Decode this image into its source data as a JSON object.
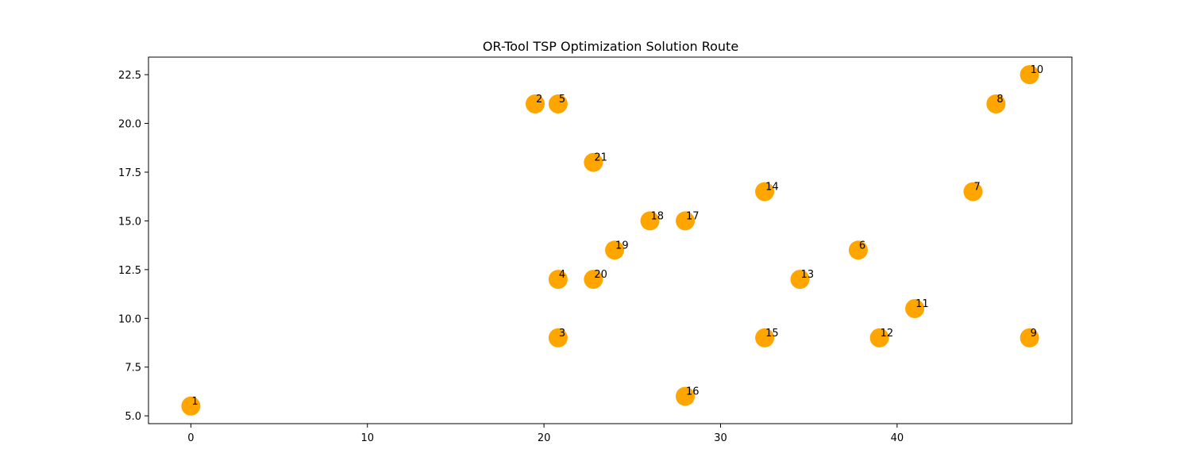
{
  "chart_data": {
    "type": "scatter",
    "title": "OR-Tool TSP Optimization Solution Route",
    "xlabel": "",
    "ylabel": "",
    "xlim": [
      -2.4,
      49.9
    ],
    "ylim": [
      4.6,
      23.4
    ],
    "xticks": [
      0,
      10,
      20,
      30,
      40
    ],
    "yticks": [
      5.0,
      7.5,
      10.0,
      12.5,
      15.0,
      17.5,
      20.0,
      22.5
    ],
    "xtick_labels": [
      "0",
      "10",
      "20",
      "30",
      "40"
    ],
    "ytick_labels": [
      "5.0",
      "7.5",
      "10.0",
      "12.5",
      "15.0",
      "17.5",
      "20.0",
      "22.5"
    ],
    "grid": false,
    "marker_color": "#FFA500",
    "points": [
      {
        "label": "1",
        "x": 0.0,
        "y": 5.5
      },
      {
        "label": "2",
        "x": 19.5,
        "y": 21.0
      },
      {
        "label": "3",
        "x": 20.8,
        "y": 9.0
      },
      {
        "label": "4",
        "x": 20.8,
        "y": 12.0
      },
      {
        "label": "5",
        "x": 20.8,
        "y": 21.0
      },
      {
        "label": "6",
        "x": 37.8,
        "y": 13.5
      },
      {
        "label": "7",
        "x": 44.3,
        "y": 16.5
      },
      {
        "label": "8",
        "x": 45.6,
        "y": 21.0
      },
      {
        "label": "9",
        "x": 47.5,
        "y": 9.0
      },
      {
        "label": "10",
        "x": 47.5,
        "y": 22.5
      },
      {
        "label": "11",
        "x": 41.0,
        "y": 10.5
      },
      {
        "label": "12",
        "x": 39.0,
        "y": 9.0
      },
      {
        "label": "13",
        "x": 34.5,
        "y": 12.0
      },
      {
        "label": "14",
        "x": 32.5,
        "y": 16.5
      },
      {
        "label": "15",
        "x": 32.5,
        "y": 9.0
      },
      {
        "label": "16",
        "x": 28.0,
        "y": 6.0
      },
      {
        "label": "17",
        "x": 28.0,
        "y": 15.0
      },
      {
        "label": "18",
        "x": 26.0,
        "y": 15.0
      },
      {
        "label": "19",
        "x": 24.0,
        "y": 13.5
      },
      {
        "label": "20",
        "x": 22.8,
        "y": 12.0
      },
      {
        "label": "21",
        "x": 22.8,
        "y": 18.0
      }
    ]
  }
}
